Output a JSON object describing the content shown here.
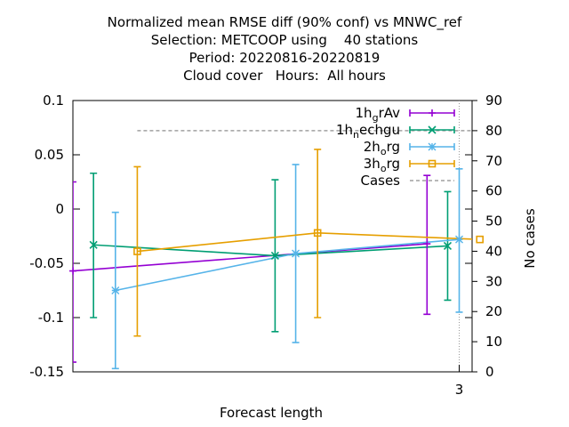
{
  "chart_data": {
    "type": "line",
    "title_lines": [
      "Normalized mean RMSE diff (90% conf) vs MNWC_ref",
      "Selection: METCOOP using    40 stations",
      "Period: 20220816-20220819",
      "Cloud cover   Hours:  All hours"
    ],
    "xlabel": "Forecast length",
    "ylabel": "",
    "y2label": "No cases",
    "xlim": [
      0,
      3.1
    ],
    "ylim": [
      -0.15,
      0.1
    ],
    "y2lim": [
      0,
      90
    ],
    "x_ticks": [
      3
    ],
    "y_ticks": [
      0.1,
      0.05,
      0,
      -0.05,
      -0.1,
      -0.15
    ],
    "y_tick_labels": [
      "0.1",
      "0.05",
      "0",
      "-0.05",
      "-0.1",
      "-0.15"
    ],
    "y2_ticks": [
      90,
      80,
      70,
      60,
      50,
      40,
      30,
      20,
      10,
      0
    ],
    "legend_position": "top-right",
    "series": [
      {
        "name": "1h_grAv",
        "color": "#9400d3",
        "marker": "plus",
        "x": [
          0,
          2.75
        ],
        "y": [
          -0.057,
          -0.032
        ],
        "err_low": [
          -0.141,
          -0.097
        ],
        "err_high": [
          0.025,
          0.031
        ]
      },
      {
        "name": "1h_nechgu",
        "color": "#009e73",
        "marker": "x",
        "x": [
          0.16,
          1.57,
          2.91
        ],
        "y": [
          -0.033,
          -0.043,
          -0.034
        ],
        "err_low": [
          -0.1,
          -0.113,
          -0.084
        ],
        "err_high": [
          0.033,
          0.027,
          0.016
        ]
      },
      {
        "name": "2h_org",
        "color": "#56b4e9",
        "marker": "star",
        "x": [
          0.33,
          1.73,
          3.0
        ],
        "y": [
          -0.075,
          -0.041,
          -0.028
        ],
        "err_low": [
          -0.147,
          -0.123,
          -0.095
        ],
        "err_high": [
          -0.003,
          0.041,
          0.037
        ]
      },
      {
        "name": "3h_org",
        "color": "#e69f00",
        "marker": "square",
        "x": [
          0.5,
          1.9,
          3.16
        ],
        "y": [
          -0.039,
          -0.022,
          -0.028
        ],
        "err_low": [
          -0.117,
          -0.1,
          -0.095
        ],
        "err_high": [
          0.039,
          0.055,
          0.037
        ]
      },
      {
        "name": "Cases",
        "color": "#a0a0a0",
        "marker": "none",
        "dashed": true,
        "axis": "y2",
        "x": [
          0.5,
          3.1
        ],
        "y": [
          80,
          80
        ]
      }
    ]
  }
}
